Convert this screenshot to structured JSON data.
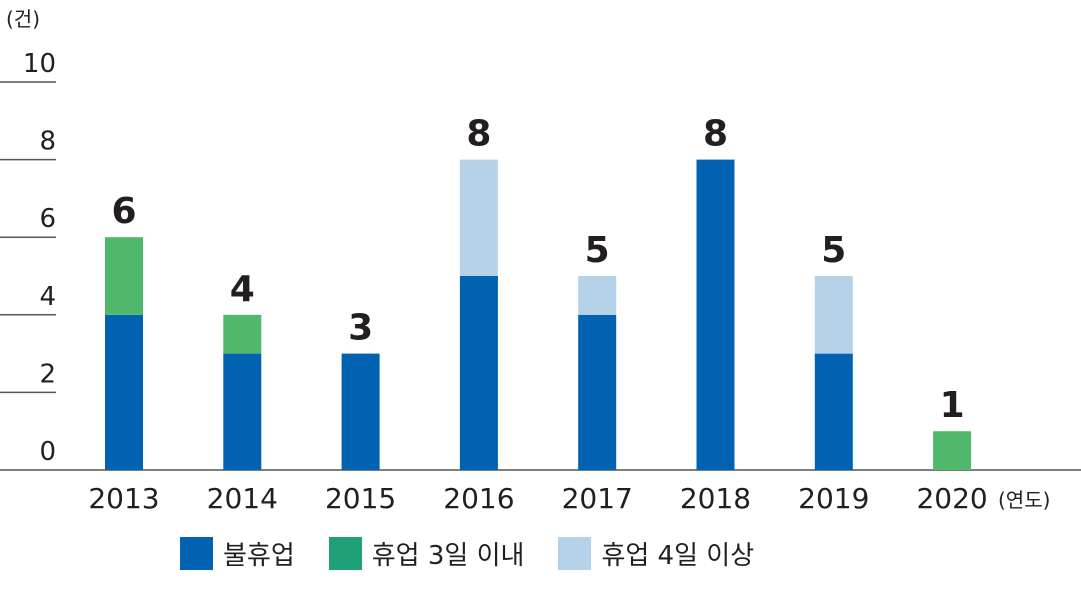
{
  "chart_data": {
    "type": "bar",
    "stacked": true,
    "categories": [
      "2013",
      "2014",
      "2015",
      "2016",
      "2017",
      "2018",
      "2019",
      "2020"
    ],
    "series": [
      {
        "name": "불휴업",
        "color": "#0062b1",
        "values": [
          4,
          3,
          3,
          5,
          4,
          8,
          3,
          0
        ]
      },
      {
        "name": "휴업 3일 이내",
        "color": "#50b86b",
        "values": [
          2,
          1,
          0,
          0,
          0,
          0,
          0,
          1
        ]
      },
      {
        "name": "휴업 4일 이상",
        "color": "#b5d2e8",
        "values": [
          0,
          0,
          0,
          3,
          1,
          0,
          2,
          0
        ]
      }
    ],
    "totals": [
      "6",
      "4",
      "3",
      "8",
      "5",
      "8",
      "5",
      "1"
    ],
    "y_unit": "(건)",
    "x_unit": "(연도)",
    "yticks": [
      "0",
      "2",
      "4",
      "6",
      "8",
      "10"
    ],
    "ylim": [
      0,
      10
    ],
    "grid": false,
    "legend_position": "bottom"
  },
  "legend": {
    "swatch_colors": [
      "#0062b1",
      "#1fa079",
      "#b5d2e8"
    ]
  }
}
